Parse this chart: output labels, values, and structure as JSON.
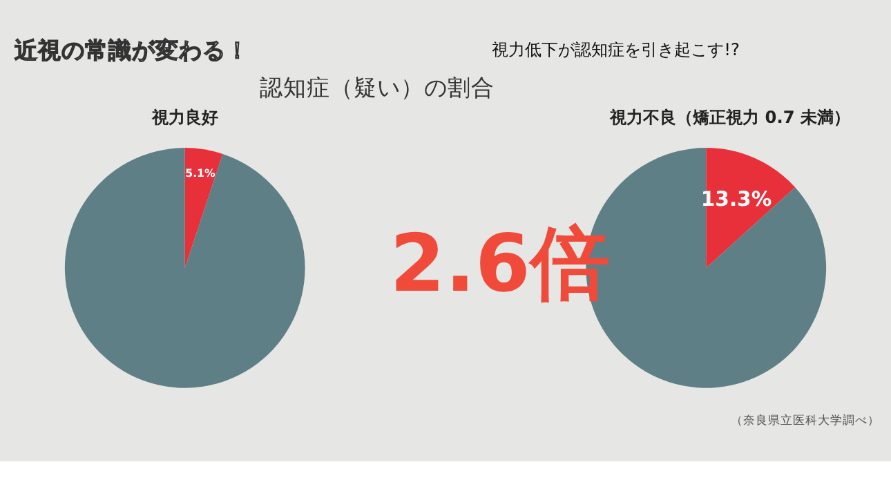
{
  "chart_data": [
    {
      "type": "pie",
      "title": "視力良好",
      "annotations": [
        "近視の常識が変わる！",
        "視力低下が認知症を引き起こす!?",
        "認知症（疑い）の割合"
      ],
      "categories": [
        null,
        null
      ],
      "values": [
        5.1,
        94.9
      ],
      "colors": [
        "#e8303a",
        "#5f7f86"
      ],
      "value_labels": [
        "5.1%",
        null
      ]
    },
    {
      "type": "pie",
      "title": "視力不良（矯正視力 0.7 未満）",
      "annotations": [
        "2.6倍",
        "（奈良県立医科大学調べ）"
      ],
      "categories": [
        null,
        null
      ],
      "values": [
        13.3,
        86.7
      ],
      "colors": [
        "#e8303a",
        "#5f7f86"
      ],
      "value_labels": [
        "13.3%",
        null
      ]
    }
  ]
}
